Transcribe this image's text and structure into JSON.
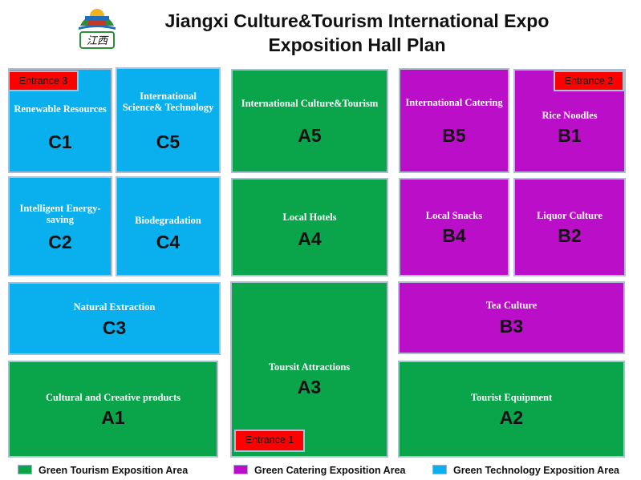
{
  "header": {
    "logo_text": "江西",
    "title_line1": "Jiangxi Culture&Tourism International Expo",
    "title_line2": "Exposition Hall Plan"
  },
  "colors": {
    "green_tourism": "#0aa54a",
    "green_catering": "#bb0ec8",
    "green_technology": "#0aafed",
    "entrance": "#ff0000",
    "border": "#aebfd4"
  },
  "zones": {
    "C1": {
      "name": "Renewable Resources",
      "code": "C1"
    },
    "C5": {
      "name": "International Science& Technology",
      "code": "C5"
    },
    "C2": {
      "name": "Intelligent Energy-saving",
      "code": "C2"
    },
    "C4": {
      "name": "Biodegradation",
      "code": "C4"
    },
    "C3": {
      "name": "Natural Extraction",
      "code": "C3"
    },
    "A1": {
      "name": "Cultural and Creative products",
      "code": "A1"
    },
    "A5": {
      "name": "International Culture&Tourism",
      "code": "A5"
    },
    "A4": {
      "name": "Local Hotels",
      "code": "A4"
    },
    "A3": {
      "name": "Toursit Attractions",
      "code": "A3"
    },
    "B5": {
      "name": "International Catering",
      "code": "B5"
    },
    "B1": {
      "name": "Rice Noodles",
      "code": "B1"
    },
    "B4": {
      "name": "Local Snacks",
      "code": "B4"
    },
    "B2": {
      "name": "Liquor Culture",
      "code": "B2"
    },
    "B3": {
      "name": "Tea Culture",
      "code": "B3"
    },
    "A2": {
      "name": "Tourist Equipment",
      "code": "A2"
    }
  },
  "entrances": {
    "e1": "Entrance 1",
    "e2": "Entrance 2",
    "e3": "Entrance 3"
  },
  "legend": {
    "tourism": "Green Tourism Exposition Area",
    "catering": "Green Catering Exposition Area",
    "technology": "Green Technology Exposition Area"
  }
}
